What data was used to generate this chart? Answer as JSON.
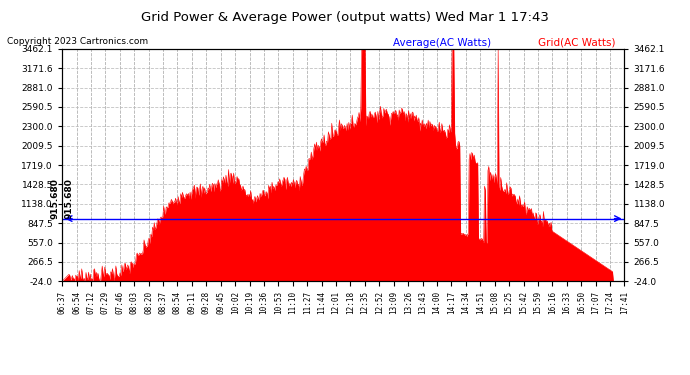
{
  "title": "Grid Power & Average Power (output watts) Wed Mar 1 17:43",
  "copyright": "Copyright 2023 Cartronics.com",
  "legend_avg": "Average(AC Watts)",
  "legend_grid": "Grid(AC Watts)",
  "avg_value": 915.68,
  "ymin": -24.0,
  "ymax": 3462.1,
  "yticks": [
    3462.1,
    3171.6,
    2881.0,
    2590.5,
    2300.0,
    2009.5,
    1719.0,
    1428.5,
    1138.0,
    847.5,
    557.0,
    266.5,
    -24.0
  ],
  "fill_color": "#ff0000",
  "avg_line_color": "#0000ff",
  "bg_color": "#ffffff",
  "grid_color": "#bbbbbb",
  "title_color": "#000000",
  "copyright_color": "#000000",
  "legend_avg_color": "#0000ff",
  "legend_grid_color": "#ff0000",
  "x_tick_labels": [
    "06:37",
    "06:54",
    "07:12",
    "07:29",
    "07:46",
    "08:03",
    "08:20",
    "08:37",
    "08:54",
    "09:11",
    "09:28",
    "09:45",
    "10:02",
    "10:19",
    "10:36",
    "10:53",
    "11:10",
    "11:27",
    "11:44",
    "12:01",
    "12:18",
    "12:35",
    "12:52",
    "13:09",
    "13:26",
    "13:43",
    "14:00",
    "14:17",
    "14:34",
    "14:51",
    "15:08",
    "15:25",
    "15:42",
    "15:59",
    "16:16",
    "16:33",
    "16:50",
    "17:07",
    "17:24",
    "17:41"
  ],
  "num_points": 660
}
